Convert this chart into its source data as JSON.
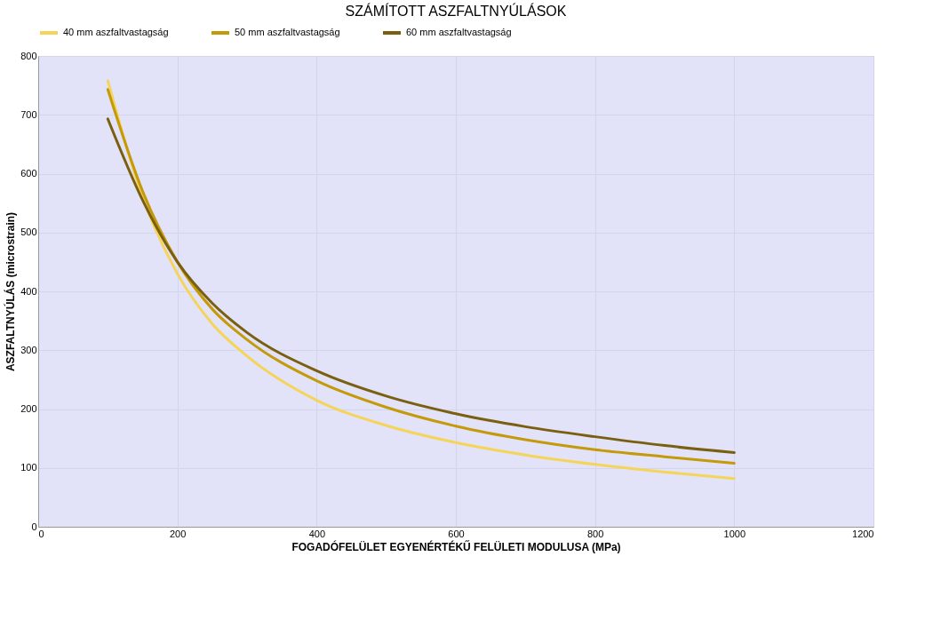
{
  "chart_data": {
    "type": "line",
    "title": "SZÁMÍTOTT ASZFALTNYÚLÁSOK",
    "xlabel": "FOGADÓFELÜLET EGYENÉRTÉKŰ FELÜLETI MODULUSA (MPa)",
    "ylabel": "ASZFALTNYÚLÁS (microstrain)",
    "x": [
      100,
      150,
      200,
      250,
      300,
      400,
      500,
      600,
      700,
      800,
      900,
      1000
    ],
    "series": [
      {
        "name": "40 mm aszfaltvastagság",
        "color": "#f5d45a",
        "values": [
          758,
          560,
          430,
          345,
          290,
          215,
          172,
          143,
          122,
          106,
          93,
          82
        ]
      },
      {
        "name": "50 mm aszfaltvastagság",
        "color": "#c49a0a",
        "values": [
          743,
          570,
          450,
          370,
          318,
          248,
          203,
          171,
          148,
          131,
          119,
          108
        ]
      },
      {
        "name": "60 mm aszfaltvastagság",
        "color": "#7a5f10",
        "values": [
          693,
          555,
          450,
          380,
          330,
          265,
          222,
          192,
          170,
          153,
          138,
          126
        ]
      }
    ],
    "xlim": [
      0,
      1200
    ],
    "xticks": [
      0,
      200,
      400,
      600,
      800,
      1000,
      1200
    ],
    "ylim": [
      0,
      800
    ],
    "yticks": [
      0,
      100,
      200,
      300,
      400,
      500,
      600,
      700,
      800
    ],
    "grid": true,
    "legend": "top",
    "marker": "none",
    "line_style": "solid"
  }
}
